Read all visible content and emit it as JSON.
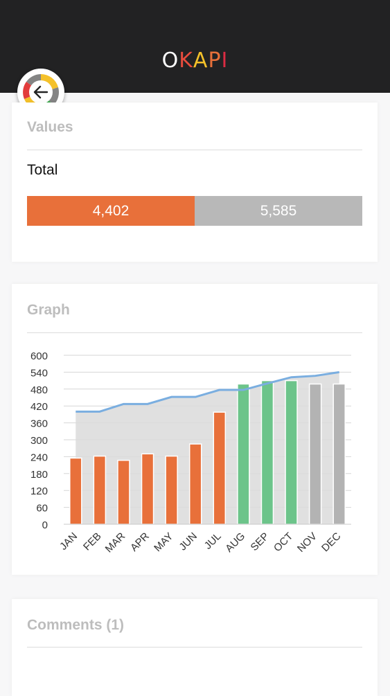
{
  "header": {
    "logo_letters": [
      {
        "ch": "O",
        "color": "#ffffff"
      },
      {
        "ch": "K",
        "color": "#e84c3d"
      },
      {
        "ch": "A",
        "color": "#f4c12a"
      },
      {
        "ch": "P",
        "color": "#e8703a"
      },
      {
        "ch": "I",
        "color": "#dd2c43"
      }
    ]
  },
  "back_button": {
    "icon": "arrow-left-icon"
  },
  "values_card": {
    "title": "Values",
    "total_label": "Total",
    "bar_left_value": "4,402",
    "bar_right_value": "5,585",
    "bar_left_color": "#e8703a",
    "bar_right_color": "#b8b8b8"
  },
  "graph_card": {
    "title": "Graph"
  },
  "comments_card": {
    "title": "Comments (1)"
  },
  "chart_data": {
    "type": "bar",
    "categories": [
      "JAN",
      "FEB",
      "MAR",
      "APR",
      "MAY",
      "JUN",
      "JUL",
      "AUG",
      "SEP",
      "OCT",
      "NOV",
      "DEC"
    ],
    "series": [
      {
        "values": [
          235,
          242,
          227,
          250,
          242,
          285,
          398,
          498,
          510,
          510,
          498,
          498
        ]
      },
      {
        "type": "area",
        "values": [
          400,
          400,
          427,
          427,
          452,
          452,
          477,
          477,
          500,
          522,
          527,
          540
        ]
      }
    ],
    "bar_colors": [
      "#e8703a",
      "#e8703a",
      "#e8703a",
      "#e8703a",
      "#e8703a",
      "#e8703a",
      "#e8703a",
      "#6cc48a",
      "#6cc48a",
      "#6cc48a",
      "#b3b3b3",
      "#b3b3b3"
    ],
    "yticks": [
      0,
      60,
      120,
      180,
      240,
      300,
      360,
      420,
      480,
      540,
      600
    ],
    "ylim": [
      0,
      600
    ],
    "grid": true,
    "line_color": "#7aaee0",
    "area_color": "#dadada"
  }
}
